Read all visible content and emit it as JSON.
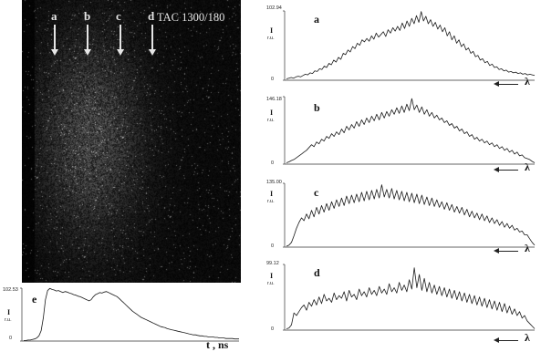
{
  "streak_image": {
    "title": "TAC 1300/180",
    "markers": [
      {
        "label": "a"
      },
      {
        "label": "b"
      },
      {
        "label": "c"
      },
      {
        "label": "d"
      }
    ]
  },
  "chart_data": [
    {
      "type": "line",
      "panel": "a",
      "xlabel": "λ",
      "ylabel": "I",
      "yunit": "r.u.",
      "ymax_label": "102.94",
      "ymin_label": "0",
      "ylim": [
        0,
        102.94
      ],
      "values": [
        2,
        3,
        4,
        3,
        5,
        6,
        5,
        7,
        9,
        8,
        11,
        10,
        14,
        13,
        17,
        16,
        21,
        19,
        25,
        23,
        30,
        27,
        34,
        31,
        40,
        38,
        45,
        42,
        50,
        47,
        55,
        52,
        60,
        57,
        62,
        58,
        66,
        61,
        70,
        64,
        68,
        72,
        65,
        75,
        70,
        78,
        73,
        80,
        74,
        85,
        77,
        88,
        80,
        92,
        84,
        96,
        86,
        102,
        88,
        95,
        84,
        90,
        80,
        86,
        76,
        82,
        72,
        78,
        66,
        72,
        60,
        66,
        55,
        60,
        50,
        54,
        45,
        48,
        40,
        43,
        35,
        37,
        30,
        32,
        26,
        28,
        22,
        24,
        19,
        20,
        16,
        17,
        14,
        15,
        12,
        13,
        11,
        12,
        10,
        11,
        9,
        10,
        8,
        9,
        8,
        7
      ]
    },
    {
      "type": "line",
      "panel": "b",
      "xlabel": "λ",
      "ylabel": "I",
      "yunit": "r.u.",
      "ymax_label": "146.18",
      "ymin_label": "0",
      "ylim": [
        0,
        146.18
      ],
      "values": [
        3,
        5,
        8,
        10,
        14,
        18,
        22,
        26,
        30,
        36,
        42,
        38,
        48,
        44,
        54,
        50,
        60,
        56,
        66,
        60,
        70,
        64,
        76,
        68,
        82,
        74,
        86,
        78,
        92,
        82,
        96,
        86,
        100,
        90,
        104,
        94,
        108,
        96,
        112,
        100,
        114,
        104,
        118,
        108,
        122,
        110,
        126,
        112,
        130,
        116,
        142,
        118,
        128,
        112,
        124,
        108,
        118,
        104,
        112,
        100,
        106,
        96,
        100,
        90,
        94,
        84,
        88,
        78,
        82,
        72,
        76,
        66,
        70,
        60,
        64,
        54,
        58,
        50,
        54,
        46,
        50,
        42,
        46,
        38,
        42,
        34,
        38,
        30,
        34,
        26,
        30,
        22,
        26,
        18,
        20,
        14,
        12,
        10,
        6,
        3
      ]
    },
    {
      "type": "line",
      "panel": "c",
      "xlabel": "λ",
      "ylabel": "I",
      "yunit": "r.u.",
      "ymax_label": "135.00",
      "ymin_label": "0",
      "ylim": [
        0,
        135.0
      ],
      "values": [
        2,
        4,
        10,
        24,
        40,
        52,
        62,
        56,
        70,
        60,
        78,
        64,
        84,
        70,
        88,
        74,
        92,
        78,
        96,
        82,
        100,
        86,
        104,
        88,
        108,
        92,
        110,
        94,
        112,
        96,
        116,
        98,
        118,
        100,
        120,
        102,
        122,
        104,
        132,
        106,
        122,
        104,
        124,
        102,
        120,
        100,
        118,
        98,
        116,
        96,
        114,
        94,
        112,
        92,
        110,
        90,
        106,
        88,
        104,
        86,
        100,
        84,
        96,
        80,
        94,
        78,
        90,
        74,
        86,
        72,
        84,
        68,
        80,
        64,
        76,
        62,
        72,
        58,
        70,
        56,
        66,
        52,
        62,
        50,
        58,
        46,
        54,
        42,
        50,
        40,
        46,
        36,
        40,
        32,
        34,
        26,
        26,
        18,
        10,
        4
      ]
    },
    {
      "type": "line",
      "panel": "d",
      "xlabel": "λ",
      "ylabel": "I",
      "yunit": "r.u.",
      "ymax_label": "99.12",
      "ymin_label": "0",
      "ylim": [
        0,
        99.12
      ],
      "values": [
        2,
        3,
        8,
        26,
        22,
        28,
        34,
        38,
        30,
        42,
        36,
        46,
        38,
        50,
        40,
        54,
        44,
        48,
        42,
        56,
        46,
        52,
        48,
        58,
        44,
        60,
        50,
        54,
        46,
        62,
        52,
        58,
        50,
        64,
        54,
        60,
        52,
        66,
        56,
        62,
        54,
        70,
        58,
        64,
        56,
        72,
        60,
        68,
        58,
        76,
        62,
        94,
        64,
        84,
        60,
        78,
        58,
        72,
        56,
        68,
        54,
        66,
        52,
        64,
        50,
        62,
        48,
        60,
        46,
        58,
        44,
        56,
        42,
        54,
        40,
        52,
        38,
        50,
        36,
        48,
        34,
        46,
        32,
        44,
        30,
        42,
        28,
        40,
        26,
        36,
        24,
        32,
        22,
        28,
        18,
        22,
        14,
        10,
        6,
        2
      ]
    },
    {
      "type": "line",
      "panel": "e",
      "xlabel": "t , ns",
      "ylabel": "I",
      "yunit": "r.u.",
      "ymax_label": "102.53",
      "ymin_label": "0",
      "ylim": [
        0,
        102.53
      ],
      "values": [
        1,
        1,
        2,
        2,
        3,
        4,
        6,
        10,
        20,
        45,
        80,
        98,
        102,
        100,
        99,
        97,
        98,
        96,
        94,
        96,
        95,
        93,
        92,
        90,
        89,
        87,
        86,
        84,
        82,
        80,
        78,
        80,
        86,
        90,
        92,
        94,
        93,
        95,
        96,
        94,
        92,
        90,
        88,
        86,
        82,
        78,
        74,
        70,
        66,
        62,
        58,
        55,
        52,
        49,
        46,
        44,
        42,
        40,
        38,
        36,
        34,
        32,
        30,
        28,
        27,
        26,
        24,
        23,
        22,
        21,
        20,
        19,
        18,
        17,
        16,
        15,
        14,
        13,
        12,
        12,
        11,
        10,
        10,
        9,
        9,
        8,
        8,
        8,
        7,
        7,
        6,
        6,
        6,
        5,
        5,
        5,
        5,
        4,
        4,
        4
      ]
    }
  ]
}
